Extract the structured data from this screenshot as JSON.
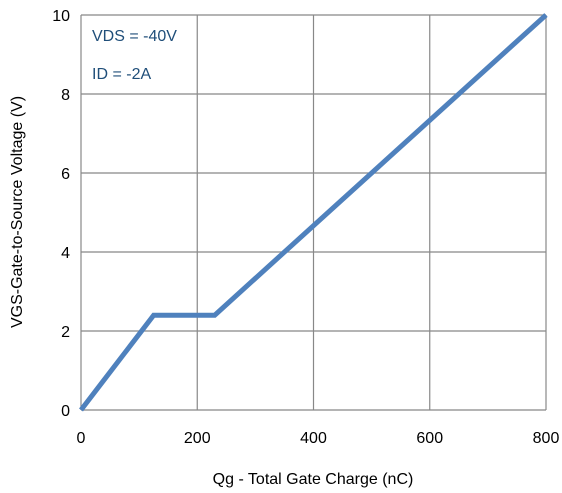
{
  "chart_data": {
    "type": "line",
    "title": "",
    "xlabel": "Qg - Total Gate Charge (nC)",
    "ylabel": "VGS-Gate-to-Source Voltage (V)",
    "xlim": [
      0,
      800
    ],
    "ylim": [
      0,
      10
    ],
    "x_ticks": [
      0,
      200,
      400,
      600,
      800
    ],
    "x_tick_labels": [
      "0",
      "200",
      "400",
      "600",
      "800"
    ],
    "y_ticks": [
      0,
      2,
      4,
      6,
      8,
      10
    ],
    "y_tick_labels": [
      "0",
      "2",
      "4",
      "6",
      "8",
      "10"
    ],
    "grid": true,
    "annotations": [
      "VDS = -40V",
      "ID = -2A"
    ],
    "series": [
      {
        "x": [
          0,
          125,
          230,
          800
        ],
        "y": [
          0,
          2.4,
          2.4,
          10
        ]
      }
    ],
    "colors": {
      "line": "#4f81bd",
      "grid": "#888888",
      "annotation_text": "#1f4e79",
      "text": "#000000"
    }
  }
}
